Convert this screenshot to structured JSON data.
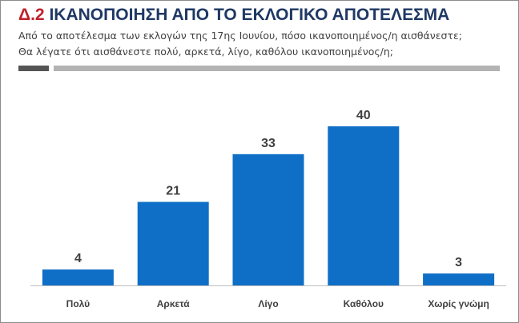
{
  "header": {
    "title_code": "Δ.2",
    "title_text": "ΙΚΑΝΟΠΟΙΗΣΗ ΑΠΟ ΤΟ ΕΚΛΟΓΙΚΟ ΑΠΟΤΕΛΕΣΜΑ",
    "subtitle_line1": "Από το αποτέλεσμα των εκλογών της 17ης Ιουνίου, πόσο ικανοποιημένος/η αισθάνεστε;",
    "subtitle_line2": "Θα λέγατε ότι αισθάνεστε πολύ, αρκετά, λίγο, καθόλου ικανοποιημένος/η;"
  },
  "colors": {
    "bar": "#0f6fc6",
    "title": "#1f3864",
    "title_code": "#c0202a"
  },
  "chart_data": {
    "type": "bar",
    "categories": [
      "Πολύ",
      "Αρκετά",
      "Λίγο",
      "Καθόλου",
      "Χωρίς γνώμη"
    ],
    "values": [
      4,
      21,
      33,
      40,
      3
    ],
    "ylim": [
      0,
      40
    ],
    "grid": false,
    "data_labels": true
  }
}
